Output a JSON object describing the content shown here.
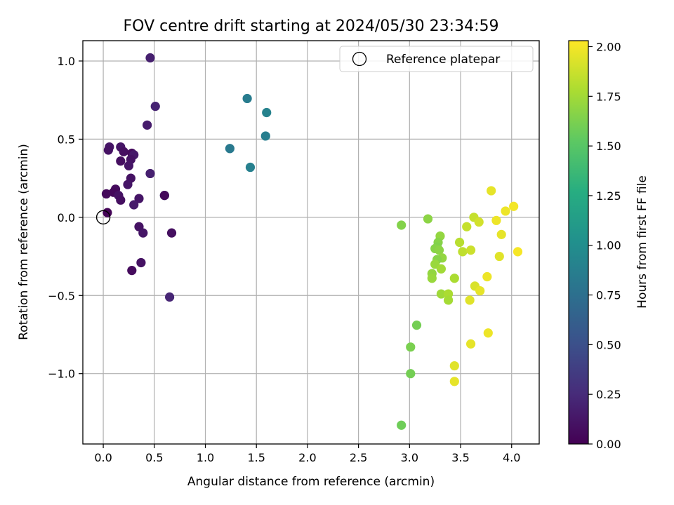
{
  "chart_data": {
    "type": "scatter",
    "title": "FOV centre drift starting at 2024/05/30 23:34:59",
    "xlabel": "Angular distance from reference (arcmin)",
    "ylabel": "Rotation from reference (arcmin)",
    "xlim": [
      -0.2,
      4.27
    ],
    "ylim": [
      -1.45,
      1.13
    ],
    "xticks": [
      0.0,
      0.5,
      1.0,
      1.5,
      2.0,
      2.5,
      3.0,
      3.5,
      4.0
    ],
    "xtick_labels": [
      "0.0",
      "0.5",
      "1.0",
      "1.5",
      "2.0",
      "2.5",
      "3.0",
      "3.5",
      "4.0"
    ],
    "yticks": [
      1.0,
      0.5,
      0.0,
      -0.5,
      -1.0
    ],
    "ytick_labels": [
      "1.0",
      "0.5",
      "0.0",
      "−0.5",
      "−1.0"
    ],
    "grid": true,
    "legend": {
      "position": "top-right",
      "entries": [
        "Reference platepar"
      ]
    },
    "reference_point": {
      "x": 0.0,
      "y": 0.0
    },
    "colorbar": {
      "label": "Hours from first FF file",
      "colormap": "viridis",
      "range": [
        0.0,
        2.03
      ],
      "ticks": [
        0.0,
        0.25,
        0.5,
        0.75,
        1.0,
        1.25,
        1.5,
        1.75,
        2.0
      ],
      "tick_labels": [
        "0.00",
        "0.25",
        "0.50",
        "0.75",
        "1.00",
        "1.25",
        "1.50",
        "1.75",
        "2.00"
      ]
    },
    "points": [
      {
        "x": 0.46,
        "y": 1.02,
        "t": 0.18
      },
      {
        "x": 0.51,
        "y": 0.71,
        "t": 0.2
      },
      {
        "x": 0.43,
        "y": 0.59,
        "t": 0.16
      },
      {
        "x": 0.06,
        "y": 0.45,
        "t": 0.12
      },
      {
        "x": 0.05,
        "y": 0.43,
        "t": 0.1
      },
      {
        "x": 0.17,
        "y": 0.45,
        "t": 0.12
      },
      {
        "x": 0.2,
        "y": 0.42,
        "t": 0.08
      },
      {
        "x": 0.28,
        "y": 0.41,
        "t": 0.06
      },
      {
        "x": 0.3,
        "y": 0.4,
        "t": 0.14
      },
      {
        "x": 0.27,
        "y": 0.37,
        "t": 0.1
      },
      {
        "x": 0.17,
        "y": 0.36,
        "t": 0.08
      },
      {
        "x": 0.25,
        "y": 0.33,
        "t": 0.12
      },
      {
        "x": 0.46,
        "y": 0.28,
        "t": 0.18
      },
      {
        "x": 0.27,
        "y": 0.25,
        "t": 0.1
      },
      {
        "x": 0.24,
        "y": 0.21,
        "t": 0.12
      },
      {
        "x": 0.12,
        "y": 0.18,
        "t": 0.06
      },
      {
        "x": 0.1,
        "y": 0.16,
        "t": 0.04
      },
      {
        "x": 0.03,
        "y": 0.15,
        "t": 0.05
      },
      {
        "x": 0.15,
        "y": 0.14,
        "t": 0.1
      },
      {
        "x": 0.17,
        "y": 0.11,
        "t": 0.08
      },
      {
        "x": 0.35,
        "y": 0.12,
        "t": 0.12
      },
      {
        "x": 0.3,
        "y": 0.08,
        "t": 0.15
      },
      {
        "x": 0.04,
        "y": 0.03,
        "t": 0.02
      },
      {
        "x": 0.6,
        "y": 0.14,
        "t": 0.6
      },
      {
        "x": 0.6,
        "y": 0.14,
        "t": 0.04
      },
      {
        "x": 0.35,
        "y": -0.06,
        "t": 0.1
      },
      {
        "x": 0.39,
        "y": -0.1,
        "t": 0.12
      },
      {
        "x": 0.67,
        "y": -0.1,
        "t": 0.08
      },
      {
        "x": 0.37,
        "y": -0.29,
        "t": 0.1
      },
      {
        "x": 0.28,
        "y": -0.34,
        "t": 0.06
      },
      {
        "x": 0.65,
        "y": -0.51,
        "t": 0.22
      },
      {
        "x": 1.41,
        "y": 0.76,
        "t": 0.85
      },
      {
        "x": 1.6,
        "y": 0.67,
        "t": 0.9
      },
      {
        "x": 1.59,
        "y": 0.52,
        "t": 0.87
      },
      {
        "x": 1.24,
        "y": 0.44,
        "t": 0.83
      },
      {
        "x": 1.44,
        "y": 0.32,
        "t": 0.88
      },
      {
        "x": 2.92,
        "y": -0.05,
        "t": 1.65
      },
      {
        "x": 3.18,
        "y": -0.01,
        "t": 1.68
      },
      {
        "x": 3.3,
        "y": -0.12,
        "t": 1.7
      },
      {
        "x": 3.28,
        "y": -0.16,
        "t": 1.66
      },
      {
        "x": 3.27,
        "y": -0.19,
        "t": 1.64
      },
      {
        "x": 3.25,
        "y": -0.2,
        "t": 1.66
      },
      {
        "x": 3.29,
        "y": -0.21,
        "t": 1.68
      },
      {
        "x": 3.32,
        "y": -0.26,
        "t": 1.7
      },
      {
        "x": 3.27,
        "y": -0.27,
        "t": 1.66
      },
      {
        "x": 3.25,
        "y": -0.3,
        "t": 1.72
      },
      {
        "x": 3.31,
        "y": -0.33,
        "t": 1.75
      },
      {
        "x": 3.22,
        "y": -0.36,
        "t": 1.7
      },
      {
        "x": 3.22,
        "y": -0.39,
        "t": 1.72
      },
      {
        "x": 3.31,
        "y": -0.49,
        "t": 1.74
      },
      {
        "x": 3.38,
        "y": -0.49,
        "t": 1.78
      },
      {
        "x": 3.38,
        "y": -0.53,
        "t": 1.76
      },
      {
        "x": 3.44,
        "y": -0.39,
        "t": 1.78
      },
      {
        "x": 3.49,
        "y": -0.16,
        "t": 1.82
      },
      {
        "x": 3.52,
        "y": -0.22,
        "t": 1.84
      },
      {
        "x": 3.56,
        "y": -0.06,
        "t": 1.86
      },
      {
        "x": 3.6,
        "y": -0.21,
        "t": 1.88
      },
      {
        "x": 3.63,
        "y": 0.0,
        "t": 1.86
      },
      {
        "x": 3.68,
        "y": -0.03,
        "t": 1.9
      },
      {
        "x": 3.64,
        "y": -0.44,
        "t": 1.92
      },
      {
        "x": 3.69,
        "y": -0.47,
        "t": 1.96
      },
      {
        "x": 3.59,
        "y": -0.53,
        "t": 1.94
      },
      {
        "x": 3.76,
        "y": -0.38,
        "t": 1.98
      },
      {
        "x": 3.8,
        "y": 0.17,
        "t": 1.96
      },
      {
        "x": 3.85,
        "y": -0.02,
        "t": 1.98
      },
      {
        "x": 3.88,
        "y": -0.25,
        "t": 1.94
      },
      {
        "x": 3.9,
        "y": -0.11,
        "t": 1.96
      },
      {
        "x": 3.94,
        "y": 0.04,
        "t": 1.98
      },
      {
        "x": 4.02,
        "y": 0.07,
        "t": 2.0
      },
      {
        "x": 4.06,
        "y": -0.22,
        "t": 2.01
      },
      {
        "x": 3.77,
        "y": -0.74,
        "t": 1.98
      },
      {
        "x": 3.6,
        "y": -0.81,
        "t": 1.96
      },
      {
        "x": 3.44,
        "y": -0.95,
        "t": 1.94
      },
      {
        "x": 3.44,
        "y": -1.05,
        "t": 1.96
      },
      {
        "x": 3.07,
        "y": -0.69,
        "t": 1.6
      },
      {
        "x": 3.01,
        "y": -0.83,
        "t": 1.62
      },
      {
        "x": 3.01,
        "y": -1.0,
        "t": 1.6
      },
      {
        "x": 2.92,
        "y": -1.33,
        "t": 1.58
      }
    ]
  }
}
